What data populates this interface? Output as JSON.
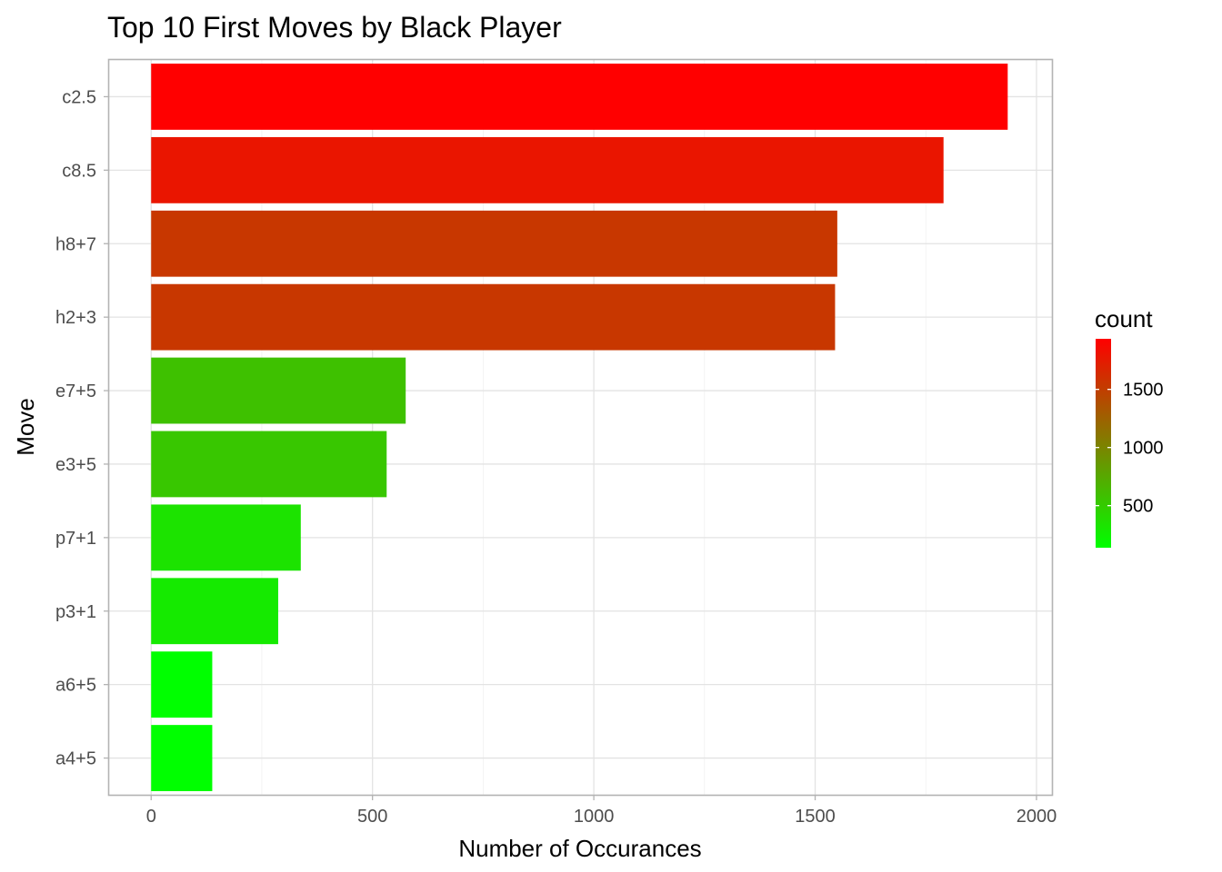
{
  "chart_data": {
    "type": "bar",
    "orientation": "horizontal",
    "title": "Top 10 First Moves by Black Player",
    "xlabel": "Number of Occurances",
    "ylabel": "Move",
    "categories": [
      "c2.5",
      "c8.5",
      "h8+7",
      "h2+3",
      "e7+5",
      "e3+5",
      "p7+1",
      "p3+1",
      "a6+5",
      "a4+5"
    ],
    "values": [
      1935,
      1790,
      1550,
      1545,
      575,
      532,
      338,
      287,
      138,
      138
    ],
    "xlim": [
      -95,
      2035
    ],
    "xticks": [
      0,
      500,
      1000,
      1500,
      2000
    ],
    "grid": true,
    "legend": {
      "title": "count",
      "position": "right",
      "ticks": [
        500,
        1000,
        1500
      ],
      "range": [
        138,
        1935
      ],
      "color_low": "#00ff00",
      "color_high": "#ff0000"
    }
  }
}
